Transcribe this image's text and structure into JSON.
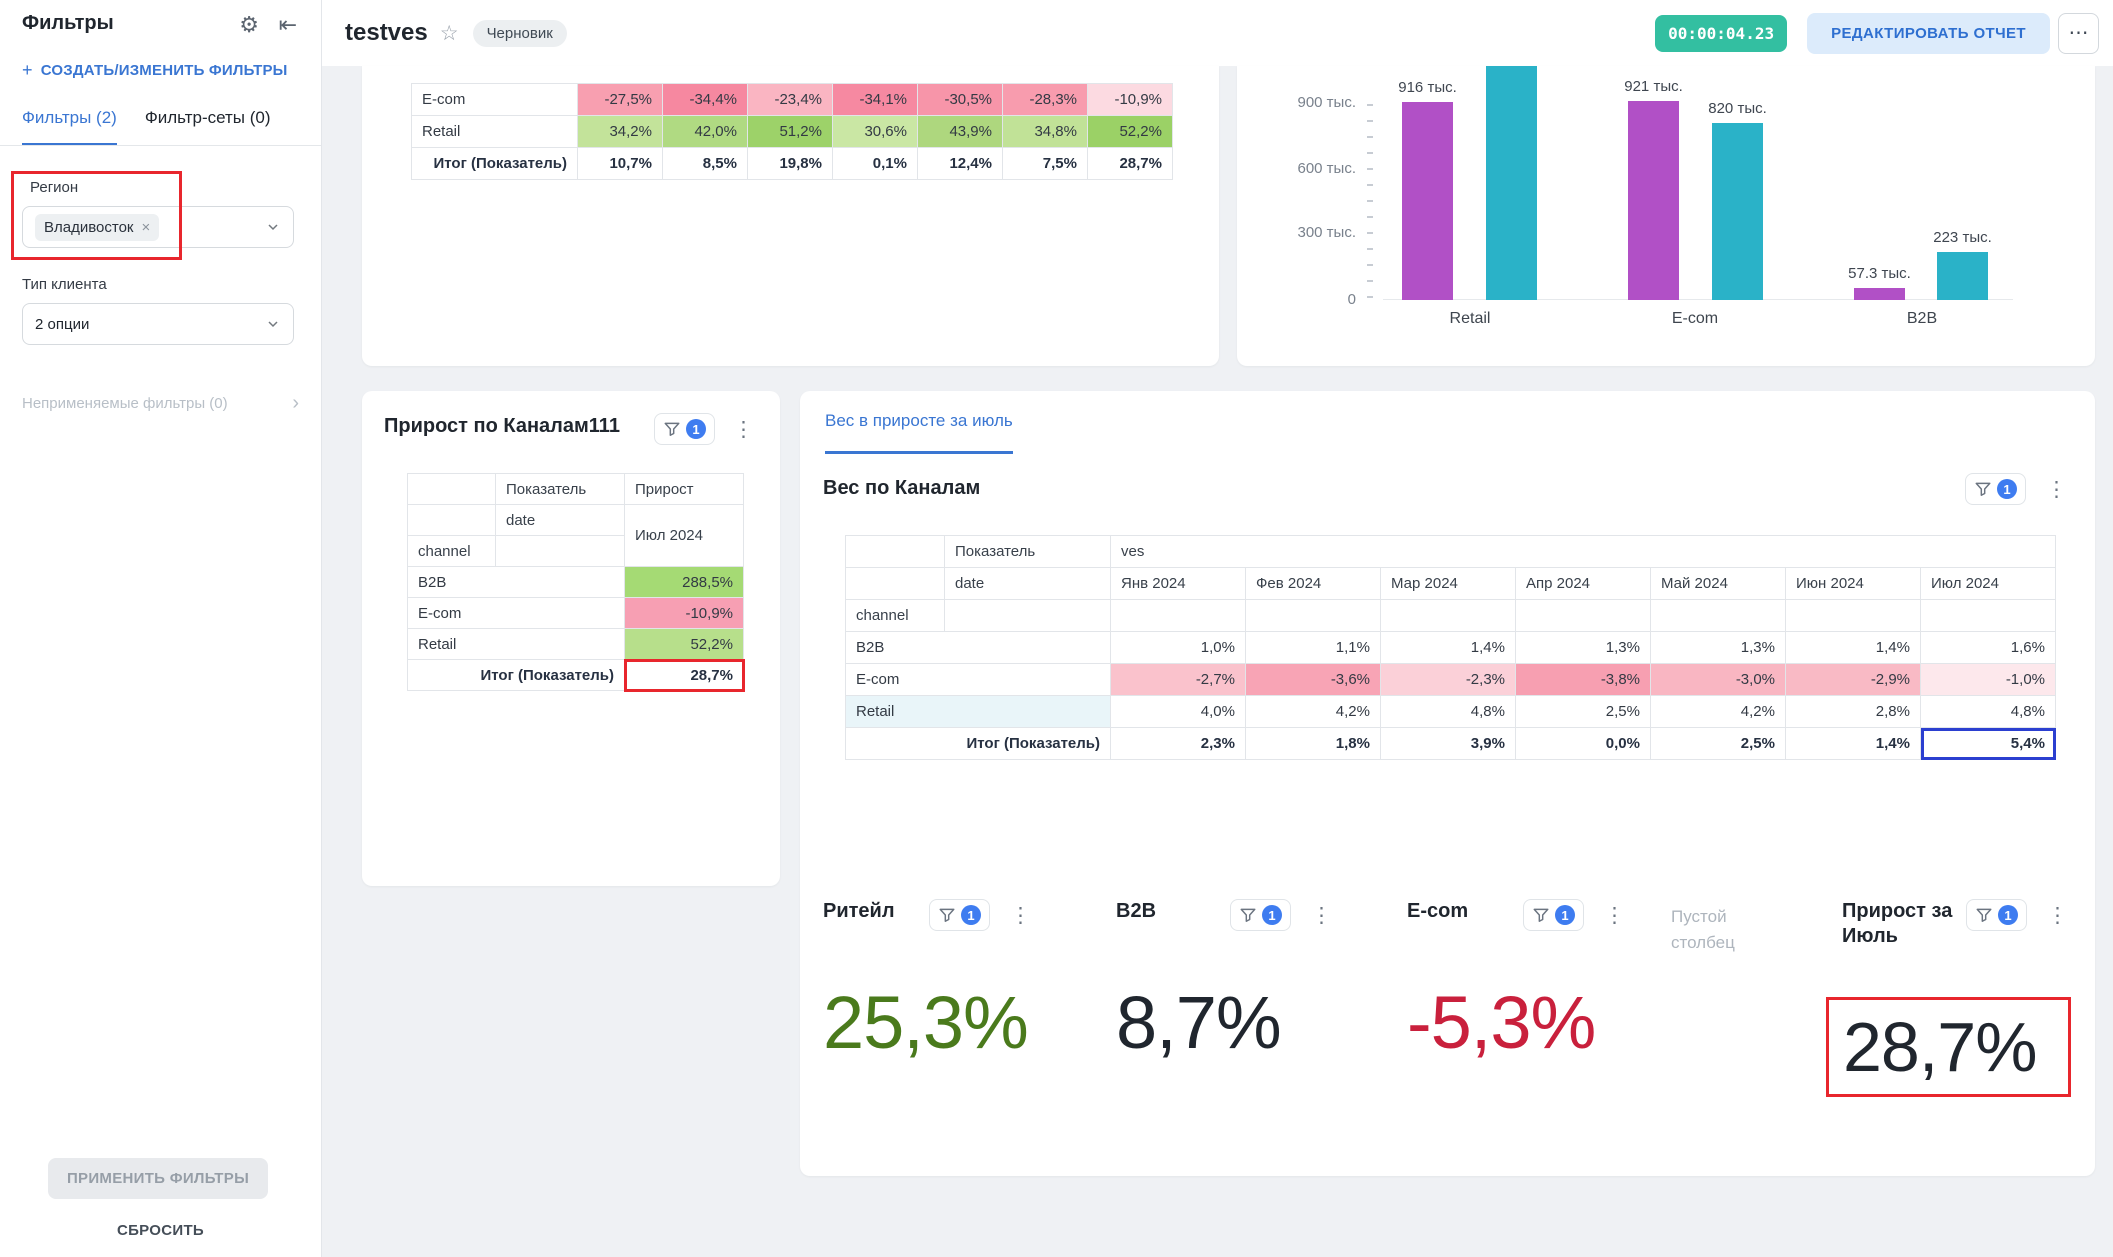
{
  "icons": {
    "plus": "+",
    "gear": "⚙",
    "collapse": "⇤",
    "star": "☆",
    "kebab": "⋮",
    "more": "⋯",
    "close": "×"
  },
  "header": {
    "title": "testves",
    "draft_badge": "Черновик",
    "timer": "00:00:04.23",
    "edit_button": "РЕДАКТИРОВАТЬ ОТЧЕТ"
  },
  "sidebar": {
    "title": "Фильтры",
    "create_link": "СОЗДАТЬ/ИЗМЕНИТЬ ФИЛЬТРЫ",
    "tabs": [
      {
        "label": "Фильтры (2)"
      },
      {
        "label": "Фильтр-сеты (0)"
      }
    ],
    "region_filter": {
      "label": "Регион",
      "chip": "Владивосток"
    },
    "client_filter": {
      "label": "Тип клиента",
      "value": "2 опции"
    },
    "unapplied_label": "Неприменяемые фильтры (0)",
    "unapplied_chevron": "›",
    "apply_button": "ПРИМЕНИТЬ ФИЛЬТРЫ",
    "reset_button": "СБРОСИТЬ"
  },
  "growth_table": {
    "rows": [
      {
        "label": "E-com",
        "values": [
          "-27,5%",
          "-34,4%",
          "-23,4%",
          "-34,1%",
          "-30,5%",
          "-28,3%",
          "-10,9%"
        ],
        "bgs": [
          "#f89fb0",
          "#f688a0",
          "#fab5c2",
          "#f689a1",
          "#f795a9",
          "#f89cae",
          "#fcdae1"
        ]
      },
      {
        "label": "Retail",
        "values": [
          "34,2%",
          "42,0%",
          "51,2%",
          "30,6%",
          "43,9%",
          "34,8%",
          "52,2%"
        ],
        "bgs": [
          "#c3e39a",
          "#b0da82",
          "#9dd269",
          "#cae7a4",
          "#aed77e",
          "#c1e297",
          "#9bd166"
        ]
      },
      {
        "label": "Итог (Показатель)",
        "values": [
          "10,7%",
          "8,5%",
          "19,8%",
          "0,1%",
          "12,4%",
          "7,5%",
          "28,7%"
        ],
        "bgs": [
          "",
          "",
          "",
          "",
          "",
          "",
          ""
        ]
      }
    ]
  },
  "chart_data": {
    "type": "bar",
    "categories": [
      "Retail",
      "E-com",
      "B2B"
    ],
    "y_ticks": [
      "900 тыс.",
      "600 тыс.",
      "300 тыс.",
      "0"
    ],
    "ylim": [
      0,
      1080
    ],
    "legend": "none",
    "series": [
      {
        "name": "series-purple",
        "color": "#b150c6",
        "values": [
          916,
          921,
          57.3
        ],
        "labels": [
          "916 тыс.",
          "921 тыс.",
          "57.3 тыс."
        ]
      },
      {
        "name": "series-teal",
        "color": "#2ab2c8",
        "values": [
          1150,
          820,
          223
        ],
        "labels": [
          "",
          "820 тыс.",
          "223 тыс."
        ]
      }
    ]
  },
  "growth_card": {
    "title": "Прирост по Каналам111",
    "filter_count": "1",
    "head": {
      "measure": "Показатель",
      "growth": "Прирост",
      "date": "date",
      "period": "Июл 2024",
      "channel": "channel"
    },
    "rows": [
      {
        "label": "B2B",
        "value": "288,5%",
        "bg": "#a5da74"
      },
      {
        "label": "E-com",
        "value": "-10,9%",
        "bg": "#f79fb3"
      },
      {
        "label": "Retail",
        "value": "52,2%",
        "bg": "#b7df8b"
      },
      {
        "label": "Итог (Показатель)",
        "value": "28,7%",
        "bg": ""
      }
    ]
  },
  "ves_card": {
    "tab": "Вес в приросте за июль",
    "title": "Вес по Каналам",
    "filter_count": "1",
    "head": {
      "measure": "Показатель",
      "name": "ves",
      "date": "date",
      "channel": "channel"
    },
    "months": [
      "Янв 2024",
      "Фев 2024",
      "Мар 2024",
      "Апр 2024",
      "Май 2024",
      "Июн 2024",
      "Июл 2024"
    ],
    "rows": [
      {
        "label": "B2B",
        "values": [
          "1,0%",
          "1,1%",
          "1,4%",
          "1,3%",
          "1,3%",
          "1,4%",
          "1,6%"
        ],
        "bgs": [
          "",
          "",
          "",
          "",
          "",
          "",
          ""
        ]
      },
      {
        "label": "E-com",
        "values": [
          "-2,7%",
          "-3,6%",
          "-2,3%",
          "-3,8%",
          "-3,0%",
          "-2,9%",
          "-1,0%"
        ],
        "bgs": [
          "#fac2cc",
          "#f8a4b5",
          "#fbd0d8",
          "#f79fb1",
          "#f9b6c2",
          "#f9bac5",
          "#fde8ec"
        ]
      },
      {
        "label": "Retail",
        "values": [
          "4,0%",
          "4,2%",
          "4,8%",
          "2,5%",
          "4,2%",
          "2,8%",
          "4,8%"
        ],
        "bgs": [
          "",
          "",
          "",
          "",
          "",
          "",
          ""
        ]
      },
      {
        "label": "Итог (Показатель)",
        "values": [
          "2,3%",
          "1,8%",
          "3,9%",
          "0,0%",
          "2,5%",
          "1,4%",
          "5,4%"
        ],
        "bgs": [
          "",
          "",
          "",
          "",
          "",
          "",
          ""
        ]
      }
    ]
  },
  "kpis": {
    "retail": {
      "label": "Ритейл",
      "value": "25,3%",
      "color": "#4a7a1c",
      "filter_count": "1"
    },
    "b2b": {
      "label": "B2B",
      "value": "8,7%",
      "color": "#20262e",
      "filter_count": "1"
    },
    "ecom": {
      "label": "E-com",
      "value": "-5,3%",
      "color": "#c9203c",
      "filter_count": "1"
    },
    "empty": {
      "label": "Пустой столбец"
    },
    "growth_july": {
      "label": "Прирост за Июль",
      "value": "28,7%",
      "color": "#20262e",
      "filter_count": "1"
    }
  }
}
